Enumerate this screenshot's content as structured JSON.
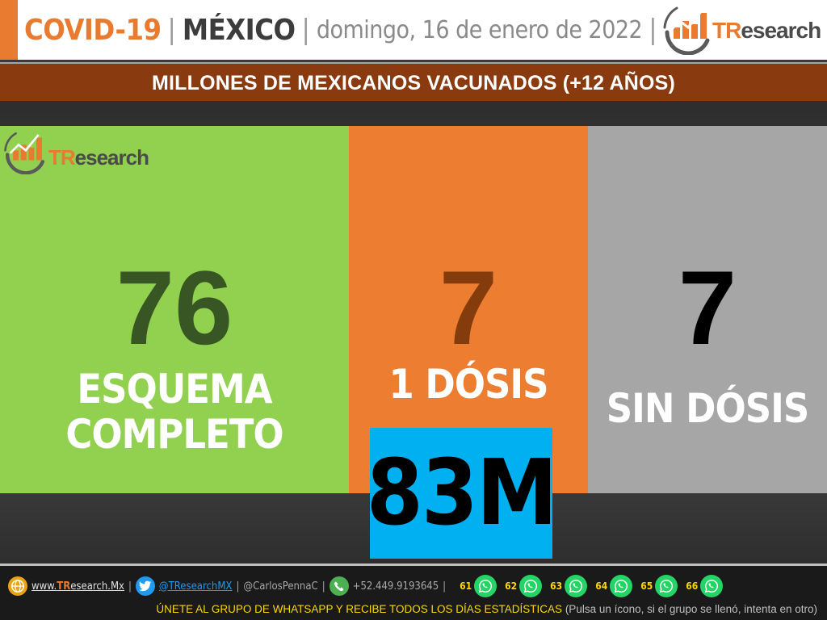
{
  "header": {
    "topic": "COVID-19",
    "separator": "|",
    "country": "MÉXICO",
    "date": "domingo, 16 de enero de 2022",
    "brand": {
      "prefix": "TR",
      "rest": "esearch"
    }
  },
  "subtitle": "MILLONES DE MEXICANOS VACUNADOS (+12 AÑOS)",
  "panels": [
    {
      "value": "76",
      "label_line1": "ESQUEMA",
      "label_line2": "COMPLETO",
      "color": "#92d050",
      "value_color": "#375623"
    },
    {
      "value": "7",
      "label_line1": "1 DÓSIS",
      "color": "#ed7d31",
      "value_color": "#843c0c"
    },
    {
      "value": "7",
      "label_line1": "SIN DÓSIS",
      "color": "#a6a6a6",
      "value_color": "#000000"
    }
  ],
  "total": {
    "value": "83M",
    "color": "#00b0f0"
  },
  "footer": {
    "website": {
      "prefix": "www.",
      "highlight": "TR",
      "rest": "esearch.Mx"
    },
    "twitter": "@TResearchMX",
    "twitter_personal": "@CarlosPennaC",
    "phone": "+52.449.9193645",
    "whatsapp_groups": [
      "61",
      "62",
      "63",
      "64",
      "65",
      "66"
    ],
    "cta_main": "ÚNETE AL GRUPO DE WHATSAPP Y RECIBE TODOS LOS DÍAS ESTADÍSTICAS",
    "cta_note": "(Pulsa un ícono, si el grupo se llenó, intenta en otro)"
  }
}
